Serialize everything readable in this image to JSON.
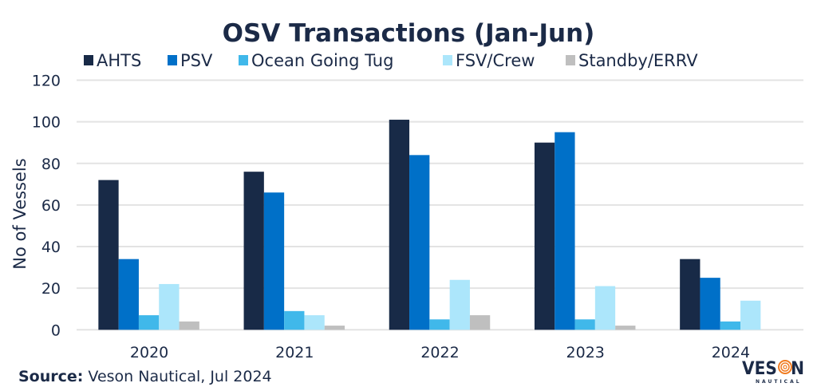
{
  "chart_data": {
    "type": "bar",
    "title": "OSV Transactions (Jan-Jun)",
    "xlabel": "",
    "ylabel": "No of Vessels",
    "ylim": [
      0,
      120
    ],
    "yticks": [
      0,
      20,
      40,
      60,
      80,
      100,
      120
    ],
    "ytick_labels": [
      "0",
      "20",
      "40",
      "60",
      "80",
      "100",
      "120"
    ],
    "grid": true,
    "legend_position": "top",
    "categories": [
      "2020",
      "2021",
      "2022",
      "2023",
      "2024"
    ],
    "series": [
      {
        "name": "AHTS",
        "color": "#182a47",
        "values": [
          72,
          76,
          101,
          90,
          34
        ]
      },
      {
        "name": "PSV",
        "color": "#0070c8",
        "values": [
          34,
          66,
          84,
          95,
          25
        ]
      },
      {
        "name": "Ocean Going Tug",
        "color": "#40b8ea",
        "values": [
          7,
          9,
          5,
          5,
          4
        ]
      },
      {
        "name": "FSV/Crew",
        "color": "#ace6fb",
        "values": [
          22,
          7,
          24,
          21,
          14
        ]
      },
      {
        "name": "Standby/ERRV",
        "color": "#bfbfbf",
        "values": [
          4,
          2,
          7,
          2,
          0
        ]
      }
    ]
  },
  "footer": {
    "source_label": "Source:",
    "source_text": " Veson Nautical, Jul 2024"
  },
  "logo": {
    "text": "VESON",
    "subtext": "NAUTICAL",
    "accent_color": "#f07c22"
  }
}
